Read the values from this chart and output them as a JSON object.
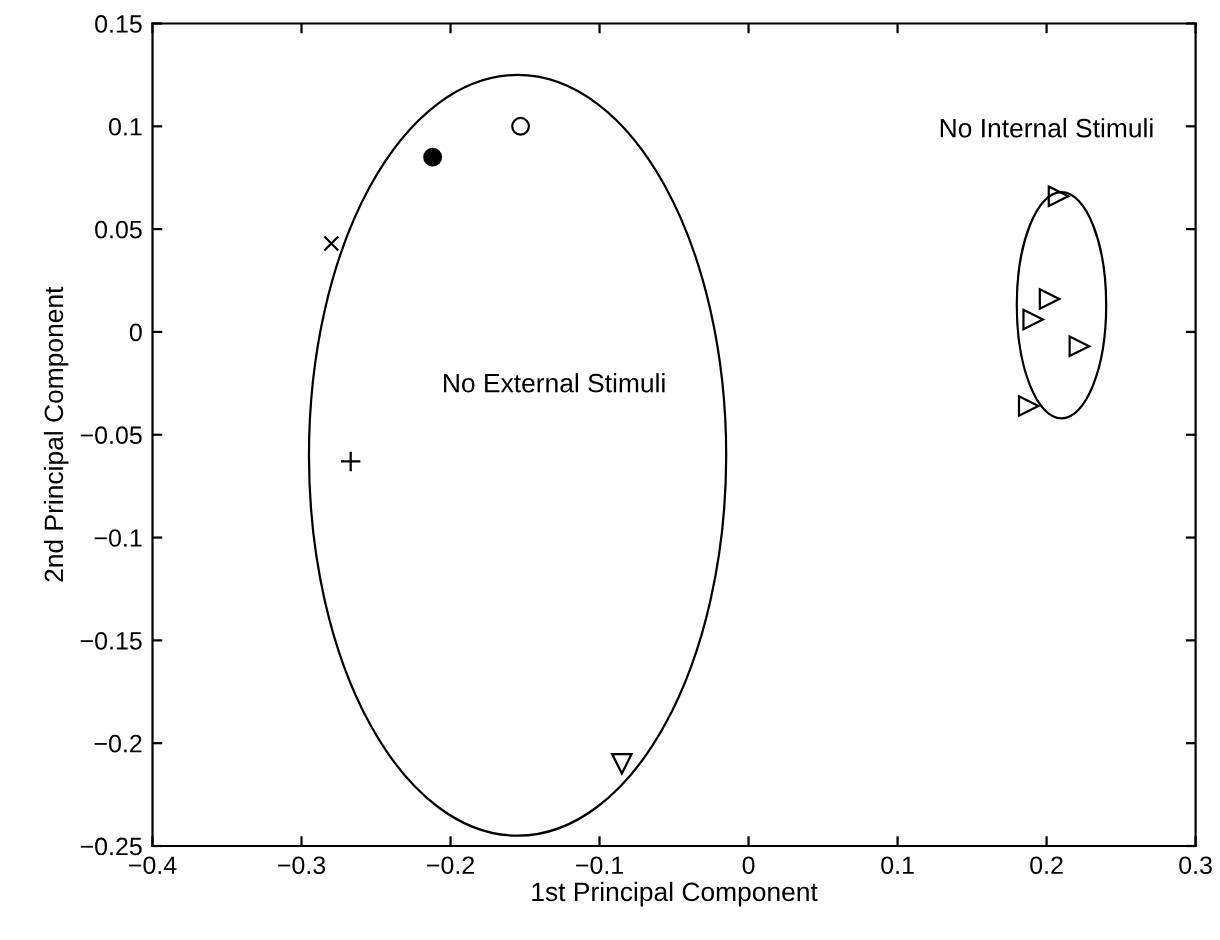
{
  "chart_data": {
    "type": "scatter",
    "xlabel": "1st Principal Component",
    "ylabel": "2nd Principal Component",
    "xlim": [
      -0.4,
      0.3
    ],
    "xticks": [
      -0.4,
      -0.3,
      -0.2,
      -0.1,
      0,
      0.1,
      0.2,
      0.3
    ],
    "ylim": [
      -0.25,
      0.15
    ],
    "yticks": [
      -0.25,
      -0.2,
      -0.15,
      -0.1,
      -0.05,
      0,
      0.05,
      0.1,
      0.15
    ],
    "grid": false,
    "legend": false,
    "series": [
      {
        "color": "#000000",
        "marker": "circle",
        "x": [
          -0.153
        ],
        "values": [
          0.1
        ]
      },
      {
        "color": "#000000",
        "marker": "dot",
        "x": [
          -0.212
        ],
        "values": [
          0.085
        ]
      },
      {
        "color": "#000000",
        "marker": "cross",
        "x": [
          -0.28
        ],
        "values": [
          0.043
        ]
      },
      {
        "color": "#000000",
        "marker": "plus",
        "x": [
          -0.267
        ],
        "values": [
          -0.063
        ]
      },
      {
        "color": "#000000",
        "marker": "triangle_down",
        "x": [
          -0.085
        ],
        "values": [
          -0.21
        ]
      },
      {
        "color": "#000000",
        "marker": "triangle_right",
        "x": [
          0.208,
          0.202,
          0.191,
          0.222,
          0.188
        ],
        "values": [
          0.066,
          0.016,
          0.006,
          -0.007,
          -0.036
        ]
      }
    ],
    "annotations": [
      "No External Stimuli",
      "No Internal Stimuli"
    ]
  }
}
